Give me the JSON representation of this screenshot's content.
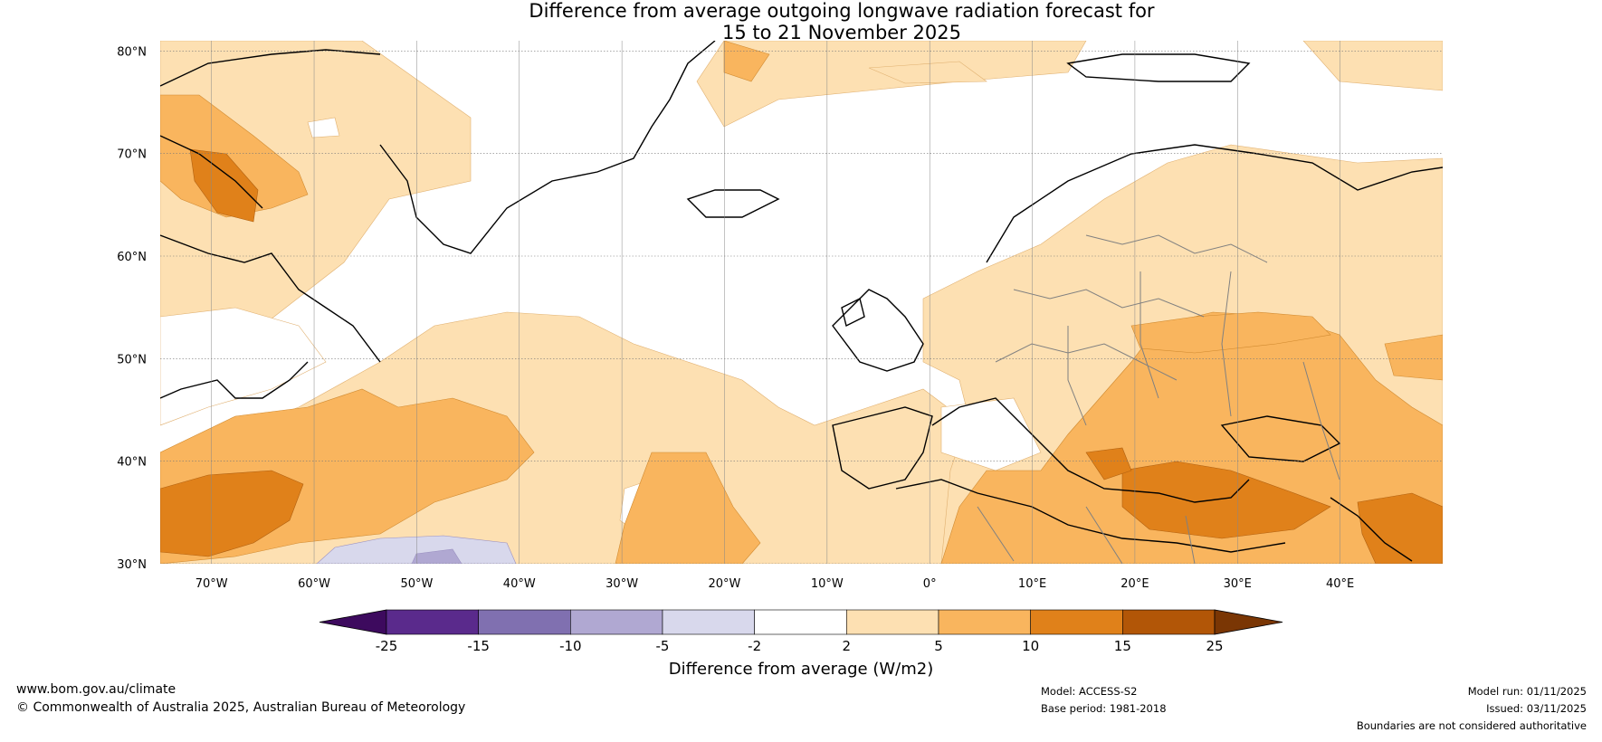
{
  "title": {
    "line1": "Difference from average outgoing longwave radiation forecast for",
    "line2": "15 to 21 November 2025"
  },
  "map": {
    "lat_labels": [
      "80°N",
      "70°N",
      "60°N",
      "50°N",
      "40°N",
      "30°N"
    ],
    "lat_values": [
      80,
      70,
      60,
      50,
      40,
      30
    ],
    "lon_labels": [
      "70°W",
      "60°W",
      "50°W",
      "40°W",
      "30°W",
      "20°W",
      "10°W",
      "0°",
      "10°E",
      "20°E",
      "30°E",
      "40°E"
    ],
    "lon_values": [
      -70,
      -60,
      -50,
      -40,
      -30,
      -20,
      -10,
      0,
      10,
      20,
      30,
      40
    ],
    "lon_range": [
      -75,
      50
    ],
    "lat_range": [
      30,
      81
    ]
  },
  "colorbar": {
    "ticks": [
      "-25",
      "-15",
      "-10",
      "-5",
      "-2",
      "2",
      "5",
      "10",
      "15",
      "25"
    ],
    "colors": [
      "#3d0a5e",
      "#5a2a8c",
      "#8070b0",
      "#b0a8d2",
      "#d8d8ec",
      "#ffffff",
      "#fde0b2",
      "#f9b55e",
      "#e0811a",
      "#b25607",
      "#7a3604"
    ],
    "label": "Difference from average (W/m2)"
  },
  "footer": {
    "website": "www.bom.gov.au/climate",
    "copyright": "© Commonwealth of Australia 2025, Australian Bureau of Meteorology",
    "model": "Model: ACCESS-S2",
    "base_period": "Base period: 1981-2018",
    "model_run": "Model run: 01/11/2025",
    "issued": "Issued: 03/11/2025",
    "disclaimer": "Boundaries are not considered authoritative"
  }
}
